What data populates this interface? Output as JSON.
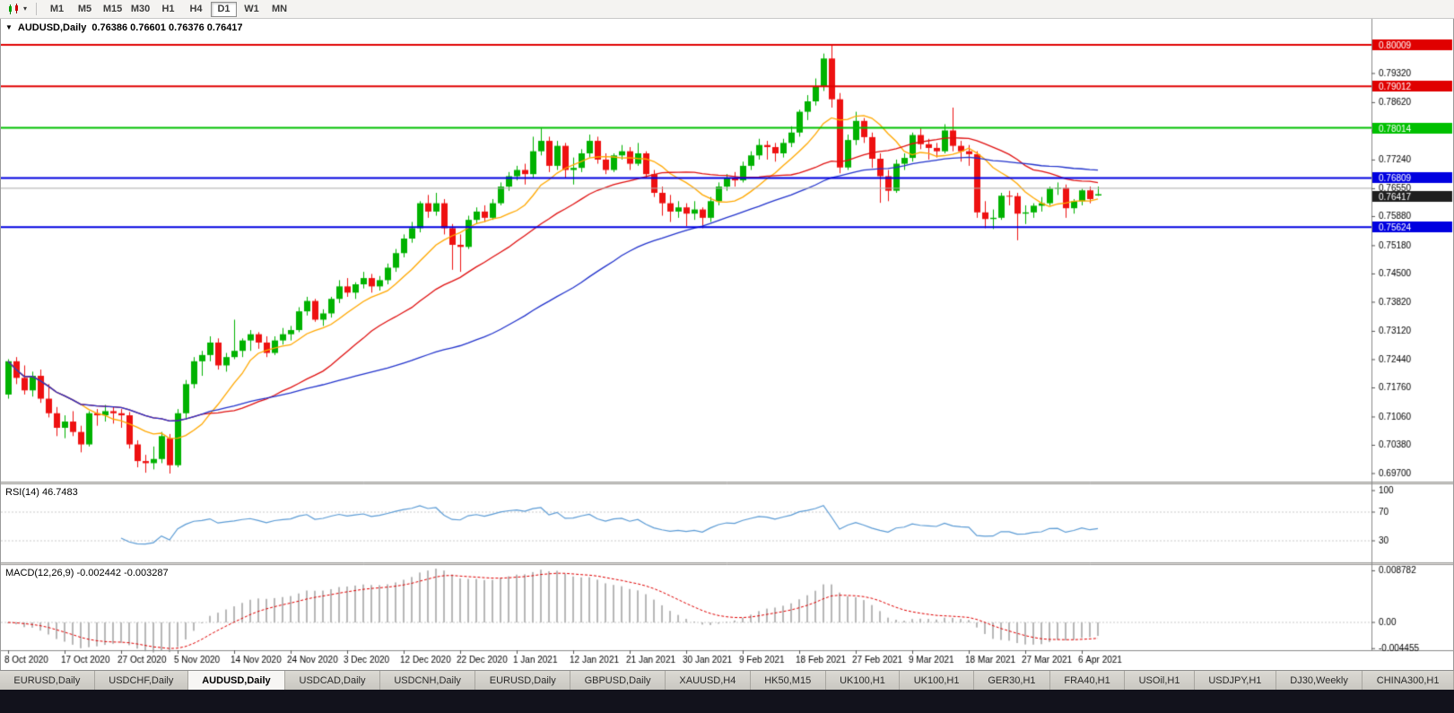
{
  "icons": {
    "chart_marker": "▼",
    "dropdown_caret": "▾"
  },
  "toolbar": {
    "timeframes": [
      {
        "label": "M1",
        "active": false
      },
      {
        "label": "M5",
        "active": false
      },
      {
        "label": "M15",
        "active": false
      },
      {
        "label": "M30",
        "active": false
      },
      {
        "label": "H1",
        "active": false
      },
      {
        "label": "H4",
        "active": false
      },
      {
        "label": "D1",
        "active": true
      },
      {
        "label": "W1",
        "active": false
      },
      {
        "label": "MN",
        "active": false
      }
    ]
  },
  "chart": {
    "symbol_period": "AUDUSD,Daily",
    "ohlc_text": "0.76386 0.76601 0.76376 0.76417",
    "open": "0.76386",
    "high": "0.76601",
    "low": "0.76376",
    "close": "0.76417"
  },
  "tabs": [
    {
      "label": "EURUSD,Daily",
      "active": false
    },
    {
      "label": "USDCHF,Daily",
      "active": false
    },
    {
      "label": "AUDUSD,Daily",
      "active": true
    },
    {
      "label": "USDCAD,Daily",
      "active": false
    },
    {
      "label": "USDCNH,Daily",
      "active": false
    },
    {
      "label": "EURUSD,Daily",
      "active": false
    },
    {
      "label": "GBPUSD,Daily",
      "active": false
    },
    {
      "label": "XAUUSD,H4",
      "active": false
    },
    {
      "label": "HK50,M15",
      "active": false
    },
    {
      "label": "UK100,H1",
      "active": false
    },
    {
      "label": "UK100,H1",
      "active": false
    },
    {
      "label": "GER30,H1",
      "active": false
    },
    {
      "label": "FRA40,H1",
      "active": false
    },
    {
      "label": "USOil,H1",
      "active": false
    },
    {
      "label": "USDJPY,H1",
      "active": false
    },
    {
      "label": "DJ30,Weekly",
      "active": false
    },
    {
      "label": "CHINA300,H1",
      "active": false
    }
  ],
  "chart_data": {
    "type": "candlestick",
    "symbol": "AUDUSD",
    "period": "Daily",
    "price_axis_range": [
      0.697,
      0.8063
    ],
    "colors": {
      "bull": "#00B200",
      "bear": "#EE1111",
      "current_badge": "#1f1f1f"
    },
    "candles": [
      [
        0.716,
        0.7245,
        0.715,
        0.724
      ],
      [
        0.724,
        0.725,
        0.7185,
        0.72
      ],
      [
        0.72,
        0.723,
        0.716,
        0.717
      ],
      [
        0.717,
        0.7215,
        0.7155,
        0.7205
      ],
      [
        0.7205,
        0.722,
        0.714,
        0.715
      ],
      [
        0.715,
        0.7185,
        0.7105,
        0.7115
      ],
      [
        0.7115,
        0.713,
        0.706,
        0.708
      ],
      [
        0.708,
        0.711,
        0.7055,
        0.7095
      ],
      [
        0.7095,
        0.712,
        0.706,
        0.707
      ],
      [
        0.707,
        0.7085,
        0.7021,
        0.704
      ],
      [
        0.704,
        0.712,
        0.7035,
        0.7115
      ],
      [
        0.7115,
        0.7125,
        0.7085,
        0.711
      ],
      [
        0.711,
        0.7135,
        0.7095,
        0.712
      ],
      [
        0.712,
        0.713,
        0.709,
        0.7115
      ],
      [
        0.7115,
        0.7125,
        0.708,
        0.711
      ],
      [
        0.711,
        0.7118,
        0.703,
        0.704
      ],
      [
        0.704,
        0.705,
        0.6985,
        0.7
      ],
      [
        0.7,
        0.7015,
        0.6972,
        0.6995
      ],
      [
        0.6995,
        0.7035,
        0.698,
        0.7005
      ],
      [
        0.7005,
        0.707,
        0.6995,
        0.706
      ],
      [
        0.7055,
        0.7065,
        0.697,
        0.699
      ],
      [
        0.699,
        0.7125,
        0.6985,
        0.7115
      ],
      [
        0.7115,
        0.7195,
        0.71,
        0.7185
      ],
      [
        0.7185,
        0.725,
        0.7175,
        0.724
      ],
      [
        0.724,
        0.7265,
        0.7205,
        0.7255
      ],
      [
        0.7255,
        0.73,
        0.724,
        0.7285
      ],
      [
        0.7285,
        0.7295,
        0.722,
        0.723
      ],
      [
        0.723,
        0.726,
        0.7215,
        0.725
      ],
      [
        0.725,
        0.734,
        0.7245,
        0.7265
      ],
      [
        0.7265,
        0.7295,
        0.725,
        0.729
      ],
      [
        0.729,
        0.7315,
        0.7265,
        0.7305
      ],
      [
        0.7305,
        0.731,
        0.727,
        0.7285
      ],
      [
        0.7285,
        0.73,
        0.725,
        0.726
      ],
      [
        0.726,
        0.73,
        0.7255,
        0.729
      ],
      [
        0.729,
        0.732,
        0.728,
        0.7305
      ],
      [
        0.7305,
        0.7325,
        0.729,
        0.7315
      ],
      [
        0.7315,
        0.737,
        0.731,
        0.736
      ],
      [
        0.736,
        0.7395,
        0.735,
        0.7385
      ],
      [
        0.7385,
        0.739,
        0.7335,
        0.734
      ],
      [
        0.734,
        0.7365,
        0.7325,
        0.7355
      ],
      [
        0.7355,
        0.7395,
        0.7345,
        0.739
      ],
      [
        0.739,
        0.7435,
        0.738,
        0.742
      ],
      [
        0.742,
        0.744,
        0.7395,
        0.7405
      ],
      [
        0.7405,
        0.743,
        0.739,
        0.7425
      ],
      [
        0.7425,
        0.7455,
        0.7415,
        0.744
      ],
      [
        0.744,
        0.745,
        0.7405,
        0.742
      ],
      [
        0.742,
        0.7445,
        0.741,
        0.7435
      ],
      [
        0.7435,
        0.7475,
        0.7425,
        0.7465
      ],
      [
        0.7465,
        0.751,
        0.7455,
        0.75
      ],
      [
        0.75,
        0.7545,
        0.749,
        0.7535
      ],
      [
        0.7535,
        0.7575,
        0.7525,
        0.756
      ],
      [
        0.756,
        0.7625,
        0.755,
        0.762
      ],
      [
        0.762,
        0.764,
        0.7585,
        0.76
      ],
      [
        0.76,
        0.7645,
        0.759,
        0.762
      ],
      [
        0.762,
        0.763,
        0.7545,
        0.756
      ],
      [
        0.756,
        0.757,
        0.746,
        0.752
      ],
      [
        0.752,
        0.7545,
        0.7455,
        0.7515
      ],
      [
        0.7515,
        0.759,
        0.751,
        0.758
      ],
      [
        0.758,
        0.761,
        0.757,
        0.76
      ],
      [
        0.76,
        0.7615,
        0.7575,
        0.7585
      ],
      [
        0.7585,
        0.763,
        0.758,
        0.762
      ],
      [
        0.762,
        0.767,
        0.7615,
        0.766
      ],
      [
        0.766,
        0.7695,
        0.765,
        0.7685
      ],
      [
        0.7685,
        0.771,
        0.7675,
        0.77
      ],
      [
        0.77,
        0.7715,
        0.7665,
        0.769
      ],
      [
        0.769,
        0.778,
        0.768,
        0.7745
      ],
      [
        0.7745,
        0.78,
        0.7735,
        0.777
      ],
      [
        0.777,
        0.778,
        0.7695,
        0.771
      ],
      [
        0.771,
        0.777,
        0.77,
        0.7758
      ],
      [
        0.7758,
        0.7765,
        0.768,
        0.77
      ],
      [
        0.77,
        0.773,
        0.7665,
        0.7705
      ],
      [
        0.7705,
        0.775,
        0.7695,
        0.774
      ],
      [
        0.774,
        0.7785,
        0.773,
        0.777
      ],
      [
        0.777,
        0.778,
        0.7715,
        0.7725
      ],
      [
        0.7725,
        0.774,
        0.769,
        0.77
      ],
      [
        0.77,
        0.774,
        0.7695,
        0.7735
      ],
      [
        0.7735,
        0.776,
        0.7725,
        0.7745
      ],
      [
        0.7745,
        0.7755,
        0.77,
        0.7715
      ],
      [
        0.7715,
        0.7765,
        0.771,
        0.774
      ],
      [
        0.774,
        0.7745,
        0.768,
        0.769
      ],
      [
        0.769,
        0.77,
        0.7635,
        0.7645
      ],
      [
        0.7645,
        0.766,
        0.759,
        0.762
      ],
      [
        0.762,
        0.764,
        0.7575,
        0.76
      ],
      [
        0.76,
        0.7625,
        0.7585,
        0.761
      ],
      [
        0.761,
        0.762,
        0.7565,
        0.7595
      ],
      [
        0.7595,
        0.7625,
        0.758,
        0.7605
      ],
      [
        0.7605,
        0.761,
        0.756,
        0.7585
      ],
      [
        0.7585,
        0.7635,
        0.7575,
        0.7625
      ],
      [
        0.7625,
        0.767,
        0.7615,
        0.766
      ],
      [
        0.766,
        0.769,
        0.765,
        0.768
      ],
      [
        0.768,
        0.7695,
        0.766,
        0.7675
      ],
      [
        0.7675,
        0.772,
        0.767,
        0.771
      ],
      [
        0.771,
        0.7745,
        0.77,
        0.7735
      ],
      [
        0.7735,
        0.7775,
        0.7725,
        0.776
      ],
      [
        0.776,
        0.777,
        0.7725,
        0.7755
      ],
      [
        0.7755,
        0.7765,
        0.772,
        0.774
      ],
      [
        0.774,
        0.7775,
        0.773,
        0.7765
      ],
      [
        0.7765,
        0.7805,
        0.7755,
        0.779
      ],
      [
        0.779,
        0.7845,
        0.778,
        0.784
      ],
      [
        0.784,
        0.788,
        0.782,
        0.7865
      ],
      [
        0.7865,
        0.792,
        0.7855,
        0.79
      ],
      [
        0.79,
        0.798,
        0.789,
        0.7968
      ],
      [
        0.7968,
        0.80009,
        0.785,
        0.787
      ],
      [
        0.787,
        0.7885,
        0.7692,
        0.7706
      ],
      [
        0.7706,
        0.7785,
        0.77,
        0.7772
      ],
      [
        0.7772,
        0.784,
        0.776,
        0.7818
      ],
      [
        0.7818,
        0.7825,
        0.7765,
        0.7779
      ],
      [
        0.7779,
        0.779,
        0.7705,
        0.7727
      ],
      [
        0.7727,
        0.774,
        0.7621,
        0.7685
      ],
      [
        0.7685,
        0.77,
        0.7625,
        0.765
      ],
      [
        0.765,
        0.7725,
        0.7645,
        0.7715
      ],
      [
        0.7715,
        0.774,
        0.77,
        0.7729
      ],
      [
        0.7729,
        0.779,
        0.772,
        0.7784
      ],
      [
        0.7784,
        0.78,
        0.775,
        0.7762
      ],
      [
        0.7762,
        0.7775,
        0.7725,
        0.7753
      ],
      [
        0.7753,
        0.7765,
        0.773,
        0.7745
      ],
      [
        0.7745,
        0.781,
        0.774,
        0.7795
      ],
      [
        0.7795,
        0.785,
        0.7745,
        0.7758
      ],
      [
        0.7758,
        0.777,
        0.772,
        0.7745
      ],
      [
        0.7745,
        0.776,
        0.771,
        0.7738
      ],
      [
        0.7738,
        0.7745,
        0.7585,
        0.7598
      ],
      [
        0.7598,
        0.7625,
        0.756,
        0.7582
      ],
      [
        0.7582,
        0.7605,
        0.7558,
        0.7585
      ],
      [
        0.7585,
        0.7645,
        0.758,
        0.7638
      ],
      [
        0.7638,
        0.765,
        0.7615,
        0.7637
      ],
      [
        0.7637,
        0.7645,
        0.7531,
        0.7595
      ],
      [
        0.7595,
        0.7615,
        0.757,
        0.7598
      ],
      [
        0.7598,
        0.762,
        0.7585,
        0.7614
      ],
      [
        0.7614,
        0.7635,
        0.76,
        0.762
      ],
      [
        0.762,
        0.766,
        0.7615,
        0.7655
      ],
      [
        0.7655,
        0.767,
        0.764,
        0.7657
      ],
      [
        0.7657,
        0.7665,
        0.7585,
        0.7608
      ],
      [
        0.7608,
        0.763,
        0.7595,
        0.7625
      ],
      [
        0.7625,
        0.7655,
        0.7615,
        0.7651
      ],
      [
        0.7651,
        0.766,
        0.762,
        0.763
      ],
      [
        0.76386,
        0.76601,
        0.76376,
        0.76417
      ]
    ],
    "date_labels": [
      "8 Oct 2020",
      "17 Oct 2020",
      "27 Oct 2020",
      "5 Nov 2020",
      "14 Nov 2020",
      "24 Nov 2020",
      "3 Dec 2020",
      "12 Dec 2020",
      "22 Dec 2020",
      "1 Jan 2021",
      "12 Jan 2021",
      "21 Jan 2021",
      "30 Jan 2021",
      "9 Feb 2021",
      "18 Feb 2021",
      "27 Feb 2021",
      "9 Mar 2021",
      "18 Mar 2021",
      "27 Mar 2021",
      "6 Apr 2021"
    ],
    "label_every": 7,
    "moving_averages": [
      {
        "period": 10,
        "color": "#FFA800"
      },
      {
        "period": 25,
        "color": "#E01010"
      },
      {
        "period": 56,
        "color": "#2233CC"
      }
    ],
    "hlines": [
      {
        "v": 0.80009,
        "color": "#E00000",
        "t": "0.80009",
        "w": 2
      },
      {
        "v": 0.79012,
        "color": "#E00000",
        "t": "0.79012",
        "w": 2
      },
      {
        "v": 0.78014,
        "color": "#00C000",
        "t": "0.78014",
        "w": 2
      },
      {
        "v": 0.76809,
        "color": "#0000E0",
        "t": "0.76809",
        "w": 2
      },
      {
        "v": 0.75624,
        "color": "#0000E0",
        "t": "0.75624",
        "w": 2
      },
      {
        "v": 0.7656,
        "color": "#ABABAB",
        "t": null,
        "w": 1
      }
    ],
    "current_price": {
      "value": 0.76417,
      "label": "0.76417"
    },
    "price_axis_labels": [
      {
        "t": "0.79320",
        "v": 0.7932
      },
      {
        "t": "0.78620",
        "v": 0.7862
      },
      {
        "t": "0.77940",
        "v": 0.7794
      },
      {
        "t": "0.77240",
        "v": 0.7724
      },
      {
        "t": "0.76550",
        "v": 0.7655
      },
      {
        "t": "0.75880",
        "v": 0.7588
      },
      {
        "t": "0.75180",
        "v": 0.7518
      },
      {
        "t": "0.74500",
        "v": 0.745
      },
      {
        "t": "0.73820",
        "v": 0.7382
      },
      {
        "t": "0.73120",
        "v": 0.7312
      },
      {
        "t": "0.72440",
        "v": 0.7244
      },
      {
        "t": "0.71760",
        "v": 0.7176
      },
      {
        "t": "0.71060",
        "v": 0.7106
      },
      {
        "t": "0.70380",
        "v": 0.7038
      },
      {
        "t": "0.69700",
        "v": 0.697
      }
    ],
    "rsi": {
      "label": "RSI(14) 46.7483",
      "value": 46.7483,
      "period": 14,
      "color": "#5B9BD5",
      "levels": [
        {
          "t": "100",
          "v": 100,
          "line": false
        },
        {
          "t": "70",
          "v": 70,
          "line": true
        },
        {
          "t": "30",
          "v": 30,
          "line": true
        }
      ]
    },
    "macd": {
      "label": "MACD(12,26,9) -0.002442 -0.003287",
      "macd_value": -0.002442,
      "signal_value": -0.003287,
      "fast": 12,
      "slow": 26,
      "signal_period": 9,
      "hist_color": "#B8B8B8",
      "signal_color": "#E00000",
      "axis": [
        {
          "t": "0.008782",
          "v": 0.008782
        },
        {
          "t": "0.00",
          "v": 0
        },
        {
          "t": "-0.004455",
          "v": -0.004455
        }
      ]
    }
  }
}
